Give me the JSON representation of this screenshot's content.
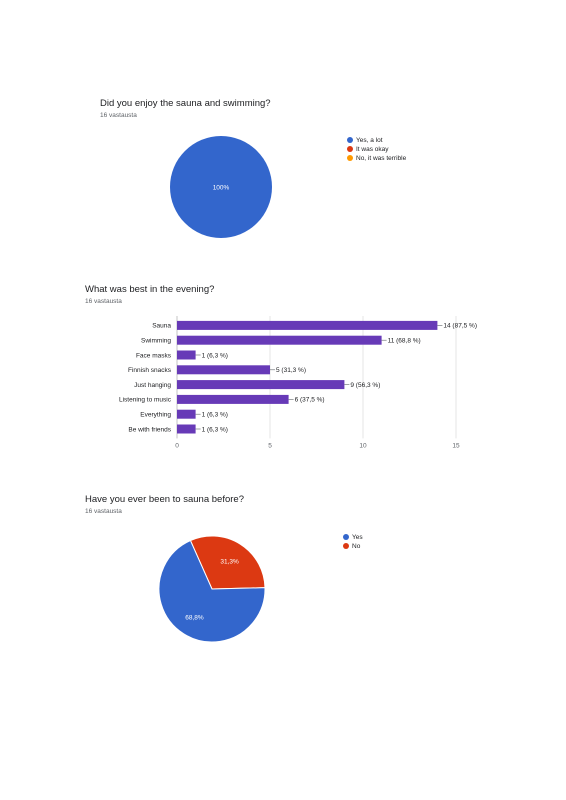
{
  "colors": {
    "blue": "#3366cc",
    "red": "#dc3912",
    "orange": "#ff9900",
    "purple": "#673ab7",
    "grid": "#e0e0e0"
  },
  "chart_data": [
    {
      "type": "pie",
      "title": "Did you enjoy the sauna and swimming?",
      "subtitle": "16 vastausta",
      "legend_position": "right",
      "slices": [
        {
          "label": "Yes, a lot",
          "value": 100.0,
          "display": "100%",
          "color": "#3366cc"
        },
        {
          "label": "It was okay",
          "value": 0,
          "display": "",
          "color": "#dc3912"
        },
        {
          "label": "No, it was terrible",
          "value": 0,
          "display": "",
          "color": "#ff9900"
        }
      ]
    },
    {
      "type": "bar",
      "orientation": "horizontal",
      "title": "What was best in the evening?",
      "subtitle": "16 vastausta",
      "color": "#673ab7",
      "grid": true,
      "xlim": [
        0,
        15
      ],
      "ticks": [
        "0",
        "5",
        "10",
        "15"
      ],
      "categories": [
        "Sauna",
        "Swimming",
        "Face masks",
        "Finnish snacks",
        "Just hanging",
        "Listening to music",
        "Everything",
        "Be with friends"
      ],
      "values": [
        14,
        11,
        1,
        5,
        9,
        6,
        1,
        1
      ],
      "value_labels": [
        "14 (87,5 %)",
        "11 (68,8 %)",
        "1 (6,3 %)",
        "5 (31,3 %)",
        "9 (56,3 %)",
        "6 (37,5 %)",
        "1 (6,3 %)",
        "1 (6,3 %)"
      ]
    },
    {
      "type": "pie",
      "title": "Have you ever been to sauna before?",
      "subtitle": "16 vastausta",
      "legend_position": "right",
      "slices": [
        {
          "label": "Yes",
          "value": 68.8,
          "display": "68,8%",
          "color": "#3366cc"
        },
        {
          "label": "No",
          "value": 31.3,
          "display": "31,3%",
          "color": "#dc3912"
        }
      ]
    }
  ]
}
